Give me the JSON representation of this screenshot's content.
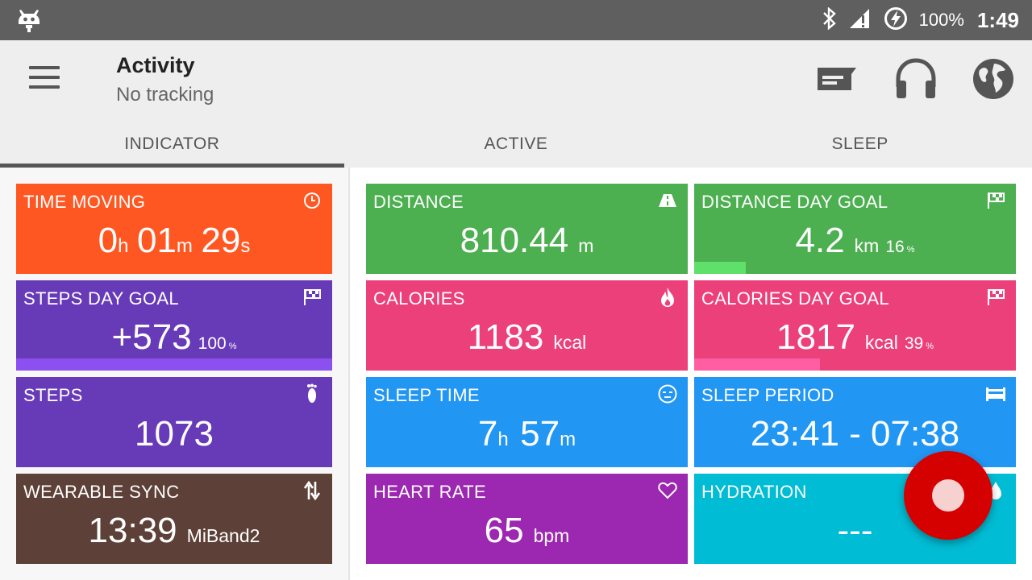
{
  "status_bar": {
    "battery": "100%",
    "time": "1:49"
  },
  "app_bar": {
    "title": "Activity",
    "subtitle": "No tracking"
  },
  "tabs": [
    {
      "label": "INDICATOR",
      "active": true
    },
    {
      "label": "ACTIVE",
      "active": false
    },
    {
      "label": "SLEEP",
      "active": false
    }
  ],
  "cards": {
    "time_moving": {
      "title": "TIME MOVING",
      "h": "0",
      "h_unit": "h",
      "m": "01",
      "m_unit": "m",
      "s": "29",
      "s_unit": "s",
      "color": "#ff5722",
      "icon": "clock-icon"
    },
    "steps_goal": {
      "title": "STEPS DAY GOAL",
      "value": "+573",
      "percent": "100",
      "pct_sign": "%",
      "progress": 1.0,
      "color": "#673ab7",
      "bar_color": "#8c4ff0",
      "icon": "flag-icon"
    },
    "steps": {
      "title": "STEPS",
      "value": "1073",
      "color": "#673ab7",
      "icon": "footprint-icon"
    },
    "wearable_sync": {
      "title": "WEARABLE SYNC",
      "value": "13:39",
      "unit": "MiBand2",
      "color": "#5d4037",
      "icon": "sync-arrows-icon"
    },
    "distance": {
      "title": "DISTANCE",
      "value": "810.44",
      "unit": "m",
      "color": "#4caf50",
      "icon": "road-icon"
    },
    "distance_goal": {
      "title": "DISTANCE DAY GOAL",
      "value": "4.2",
      "unit": "km",
      "percent": "16",
      "pct_sign": "%",
      "progress": 0.16,
      "color": "#4caf50",
      "bar_color": "#5fe06a",
      "icon": "flag-icon"
    },
    "calories": {
      "title": "CALORIES",
      "value": "1183",
      "unit": "kcal",
      "color": "#ec407a",
      "icon": "flame-icon"
    },
    "calories_goal": {
      "title": "CALORIES DAY GOAL",
      "value": "1817",
      "unit": "kcal",
      "percent": "39",
      "pct_sign": "%",
      "progress": 0.39,
      "color": "#ec407a",
      "bar_color": "#ff5fa2",
      "icon": "flag-icon"
    },
    "sleep_time": {
      "title": "SLEEP TIME",
      "h": "7",
      "h_unit": "h",
      "m": "57",
      "m_unit": "m",
      "color": "#2196f3",
      "icon": "sleep-face-icon"
    },
    "sleep_period": {
      "title": "SLEEP PERIOD",
      "value": "23:41 - 07:38",
      "color": "#2196f3",
      "icon": "bed-icon"
    },
    "heart_rate": {
      "title": "HEART RATE",
      "value": "65",
      "unit": "bpm",
      "color": "#9c27b0",
      "icon": "heart-icon"
    },
    "hydration": {
      "title": "HYDRATION",
      "value": "---",
      "color": "#00bcd4",
      "icon": "water-drop-icon"
    }
  },
  "fab": {
    "icon": "record-icon",
    "color": "#d50000"
  }
}
